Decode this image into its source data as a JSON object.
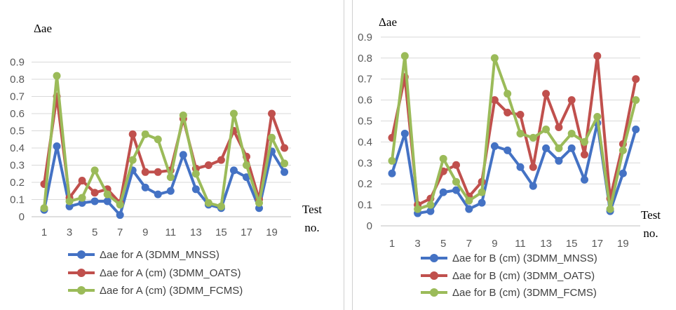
{
  "chart_data": [
    {
      "type": "line",
      "title": "",
      "ylabel": "Δae",
      "xlabel_line1": "Test",
      "xlabel_line2": "no.",
      "ylim": [
        0,
        0.9
      ],
      "yticks": [
        "0",
        "0.1",
        "0.2",
        "0.3",
        "0.4",
        "0.5",
        "0.6",
        "0.7",
        "0.8",
        "0.9"
      ],
      "x": [
        1,
        2,
        3,
        4,
        5,
        6,
        7,
        8,
        9,
        10,
        11,
        12,
        13,
        14,
        15,
        16,
        17,
        18,
        19,
        20
      ],
      "xtick_labels": [
        "1",
        "3",
        "5",
        "7",
        "9",
        "11",
        "13",
        "15",
        "17",
        "19"
      ],
      "grid": true,
      "legend_position": "bottom",
      "series": [
        {
          "name": "Δae for A (3DMM_MNSS)",
          "color": "#4472C4",
          "values": [
            0.04,
            0.41,
            0.06,
            0.08,
            0.09,
            0.09,
            0.01,
            0.27,
            0.17,
            0.13,
            0.15,
            0.36,
            0.16,
            0.07,
            0.05,
            0.27,
            0.23,
            0.05,
            0.38,
            0.26
          ]
        },
        {
          "name": "Δae for A (cm) (3DMM_OATS)",
          "color": "#C0504D",
          "values": [
            0.19,
            0.7,
            0.11,
            0.21,
            0.14,
            0.16,
            0.08,
            0.48,
            0.26,
            0.26,
            0.27,
            0.57,
            0.28,
            0.3,
            0.33,
            0.5,
            0.35,
            0.1,
            0.6,
            0.4
          ]
        },
        {
          "name": "Δae for A (cm) (3DMM_FCMS)",
          "color": "#9BBB59",
          "values": [
            0.05,
            0.82,
            0.09,
            0.11,
            0.27,
            0.13,
            0.07,
            0.33,
            0.48,
            0.45,
            0.23,
            0.59,
            0.25,
            0.08,
            0.06,
            0.6,
            0.3,
            0.08,
            0.46,
            0.31
          ]
        }
      ]
    },
    {
      "type": "line",
      "title": "",
      "ylabel": "Δae",
      "xlabel_line1": "Test",
      "xlabel_line2": "no.",
      "ylim": [
        0,
        0.9
      ],
      "yticks": [
        "0",
        "0.1",
        "0.2",
        "0.3",
        "0.4",
        "0.5",
        "0.6",
        "0.7",
        "0.8",
        "0.9"
      ],
      "x": [
        1,
        2,
        3,
        4,
        5,
        6,
        7,
        8,
        9,
        10,
        11,
        12,
        13,
        14,
        15,
        16,
        17,
        18,
        19,
        20
      ],
      "xtick_labels": [
        "1",
        "3",
        "5",
        "7",
        "9",
        "11",
        "13",
        "15",
        "17",
        "19"
      ],
      "grid": true,
      "legend_position": "bottom",
      "series": [
        {
          "name": "Δae for B  (cm) (3DMM_MNSS)",
          "color": "#4472C4",
          "values": [
            0.25,
            0.44,
            0.06,
            0.07,
            0.16,
            0.17,
            0.08,
            0.11,
            0.38,
            0.36,
            0.28,
            0.19,
            0.37,
            0.31,
            0.37,
            0.22,
            0.49,
            0.07,
            0.25,
            0.46
          ]
        },
        {
          "name": "Δae for B (cm) (3DMM_OATS)",
          "color": "#C0504D",
          "values": [
            0.42,
            0.71,
            0.1,
            0.13,
            0.26,
            0.29,
            0.14,
            0.21,
            0.6,
            0.54,
            0.53,
            0.28,
            0.63,
            0.47,
            0.6,
            0.34,
            0.81,
            0.13,
            0.39,
            0.7
          ]
        },
        {
          "name": "Δae for B (cm) (3DMM_FCMS)",
          "color": "#9BBB59",
          "values": [
            0.31,
            0.81,
            0.08,
            0.1,
            0.32,
            0.21,
            0.12,
            0.16,
            0.8,
            0.63,
            0.44,
            0.42,
            0.46,
            0.37,
            0.44,
            0.4,
            0.52,
            0.08,
            0.36,
            0.6
          ]
        }
      ]
    }
  ]
}
